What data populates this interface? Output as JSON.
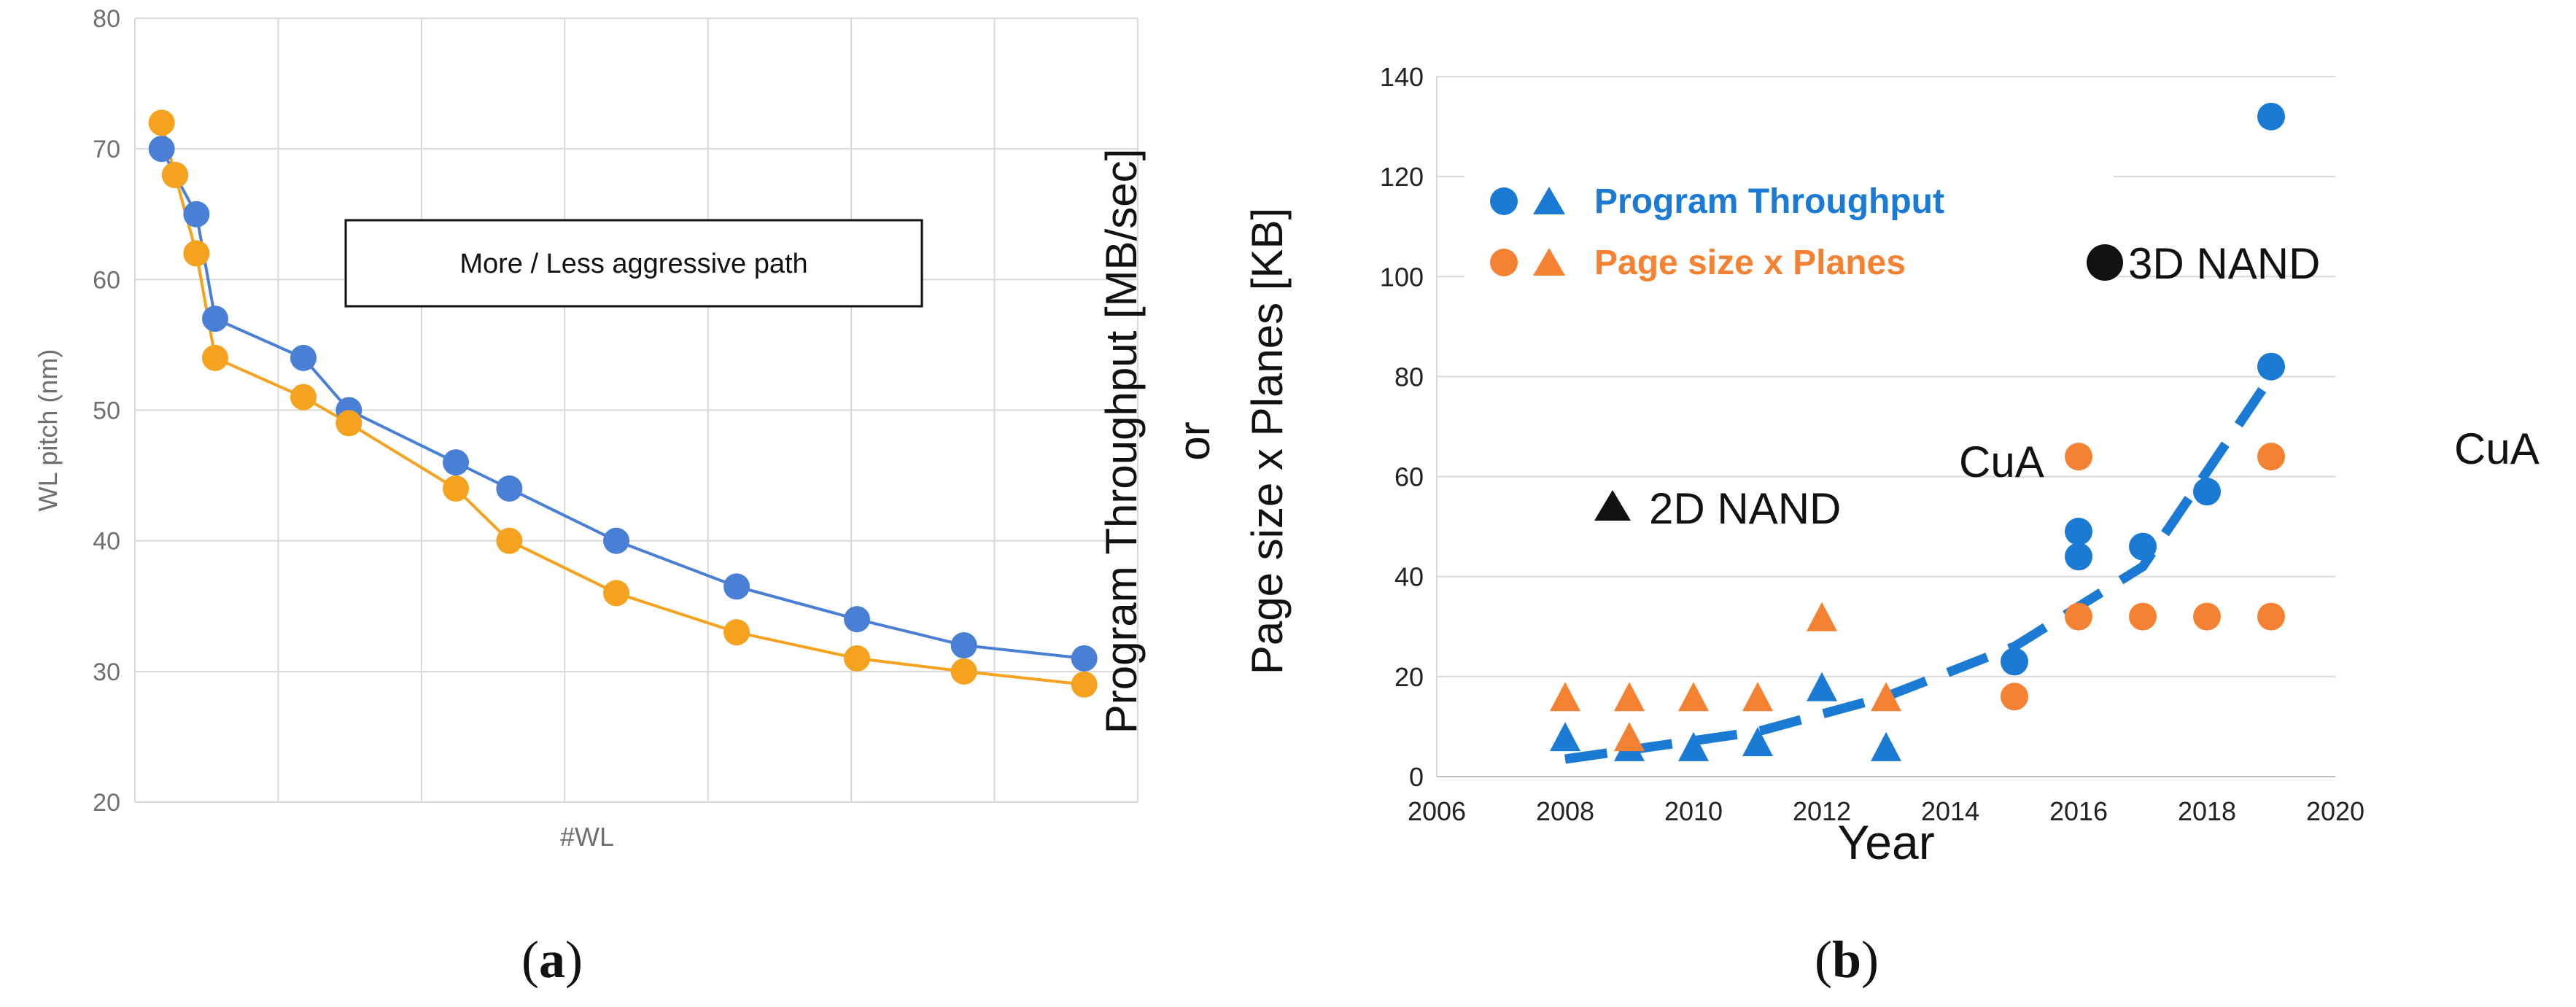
{
  "chart_data": [
    {
      "type": "line",
      "panel_label_open": "(",
      "panel_label_letter": "a",
      "panel_label_close": ")",
      "xlabel": "#WL",
      "ylabel": "WL pitch (nm)",
      "ylim": [
        20,
        80
      ],
      "yticks": [
        "20",
        "30",
        "40",
        "50",
        "60",
        "70",
        "80"
      ],
      "grid": true,
      "annotation_box": "More / Less aggressive path",
      "series": [
        {
          "name": "Less aggressive path",
          "color": "#4a7fd6",
          "x": [
            1,
            1.5,
            2.3,
            3,
            6.3,
            8,
            12,
            14,
            18,
            22.5,
            27,
            31,
            35.5
          ],
          "values": [
            70,
            68,
            65,
            57,
            54,
            50,
            46,
            44,
            40,
            36.5,
            34,
            32,
            31
          ]
        },
        {
          "name": "More aggressive path",
          "color": "#f5a21f",
          "x": [
            1,
            1.5,
            2.3,
            3,
            6.3,
            8,
            12,
            14,
            18,
            22.5,
            27,
            31,
            35.5
          ],
          "values": [
            72,
            68,
            62,
            54,
            51,
            49,
            44,
            40,
            36,
            33,
            31,
            30,
            29
          ]
        }
      ]
    },
    {
      "type": "scatter",
      "panel_label_open": "(",
      "panel_label_letter": "b",
      "panel_label_close": ")",
      "xlabel": "Year",
      "ylabel_line1": "Program Throughput [MB/sec]",
      "ylabel_line2": "or",
      "ylabel_line3": "Page size x Planes  [KB]",
      "xlim": [
        2006,
        2020
      ],
      "ylim": [
        0,
        140
      ],
      "xticks": [
        "2006",
        "2008",
        "2010",
        "2012",
        "2014",
        "2016",
        "2018",
        "2020"
      ],
      "yticks": [
        "0",
        "20",
        "40",
        "60",
        "80",
        "100",
        "120",
        "140"
      ],
      "grid": "horizontal",
      "legend": [
        {
          "label": "Program Throughput",
          "color": "#1a7ad4"
        },
        {
          "label": "Page size x Planes",
          "color": "#f58232"
        }
      ],
      "annotations": {
        "nand_3d": "3D NAND",
        "nand_2d": "2D NAND",
        "cua_left": "CuA",
        "cua_right": "CuA"
      },
      "series": [
        {
          "name": "Program Throughput (2D NAND)",
          "marker": "triangle",
          "color": "#1a7ad4",
          "x": [
            2008,
            2009,
            2010,
            2011,
            2012,
            2013
          ],
          "values": [
            8,
            6,
            6,
            7,
            18,
            6
          ]
        },
        {
          "name": "Page size x Planes (2D NAND)",
          "marker": "triangle",
          "color": "#f58232",
          "x": [
            2008,
            2009,
            2009,
            2010,
            2011,
            2012,
            2013
          ],
          "values": [
            16,
            16,
            8,
            16,
            16,
            32,
            16
          ]
        },
        {
          "name": "Program Throughput (3D NAND)",
          "marker": "circle",
          "color": "#1a7ad4",
          "x": [
            2015,
            2016,
            2016,
            2017,
            2018,
            2019,
            2019
          ],
          "values": [
            23,
            44,
            49,
            46,
            57,
            82,
            132
          ]
        },
        {
          "name": "Page size x Planes (3D NAND)",
          "marker": "circle",
          "color": "#f58232",
          "x": [
            2015,
            2016,
            2016,
            2017,
            2018,
            2019,
            2019
          ],
          "values": [
            16,
            32,
            64,
            32,
            32,
            32,
            64
          ]
        }
      ],
      "trend": {
        "color": "#1a7ad4",
        "x": [
          2008,
          2011,
          2013,
          2015,
          2017,
          2019
        ],
        "values": [
          3.5,
          9,
          16,
          26,
          42,
          80
        ]
      }
    }
  ]
}
